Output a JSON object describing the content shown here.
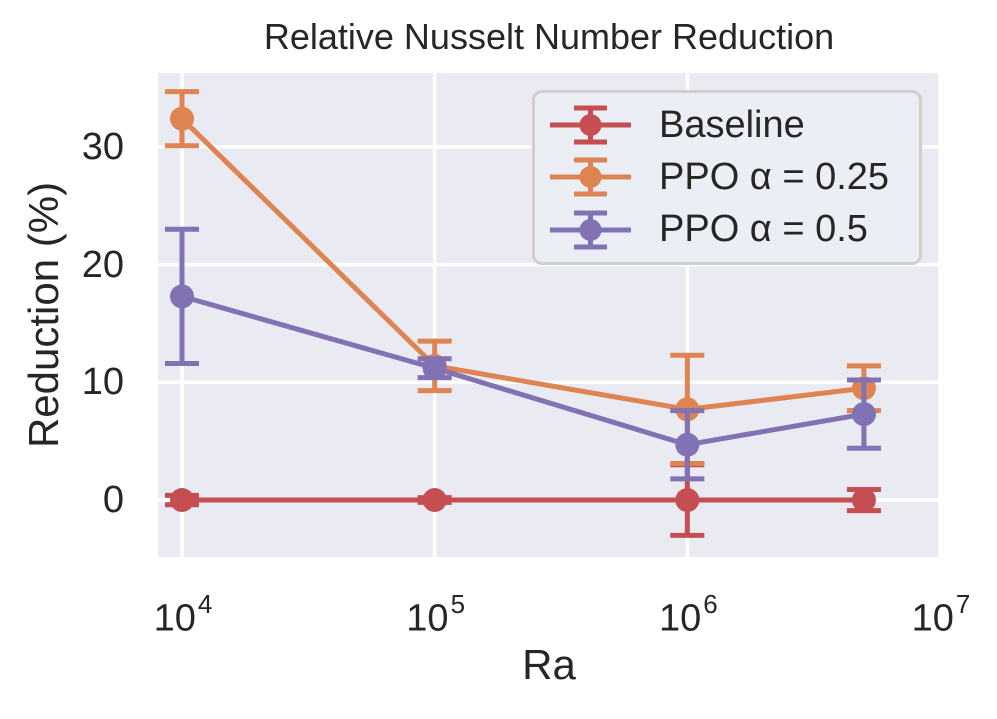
{
  "chart_data": {
    "type": "line",
    "title": "Relative Nusselt Number Reduction",
    "xlabel": "Ra",
    "ylabel": "Reduction (%)",
    "x_scale": "log",
    "grid": true,
    "background_color": "#eaeaf2",
    "grid_color": "#ffffff",
    "text_color": "#262626",
    "x": [
      10000,
      100000,
      1000000,
      5000000
    ],
    "x_tick_base": "10",
    "x_tick_exponents": [
      4,
      5,
      6,
      7
    ],
    "y_ticks": [
      0,
      10,
      20,
      30
    ],
    "ylim": [
      -4.84,
      36.28
    ],
    "xlim_log10": [
      3.905,
      7.0
    ],
    "legend": {
      "position": "upper right",
      "border_color": "#cfcfcf",
      "background": "#eceef5"
    },
    "series": [
      {
        "name": "Baseline",
        "color": "#c44e52",
        "values": [
          0,
          0,
          0,
          0
        ],
        "yerr": [
          0.4,
          0.2,
          3.0,
          0.9
        ]
      },
      {
        "name": "PPO α = 0.25",
        "color": "#dd8452",
        "values": [
          32.4,
          11.4,
          7.7,
          9.5
        ],
        "yerr": [
          2.3,
          2.1,
          4.6,
          1.9
        ]
      },
      {
        "name": "PPO α = 0.5",
        "color": "#8172b3",
        "values": [
          17.3,
          11.2,
          4.7,
          7.3
        ],
        "yerr": [
          5.7,
          0.8,
          2.9,
          2.9
        ]
      }
    ]
  }
}
